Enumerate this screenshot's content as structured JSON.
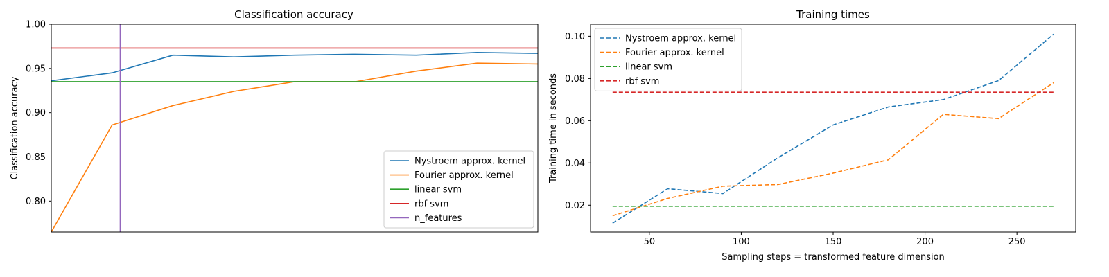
{
  "chart_data": [
    {
      "type": "line",
      "title": "Classification accuracy",
      "xlabel": "",
      "ylabel": "Classification accuracy",
      "xlim": [
        30,
        270
      ],
      "ylim": [
        0.765,
        1.0
      ],
      "xticks_visible": false,
      "yticks": [
        "0.80",
        "0.85",
        "0.90",
        "0.95",
        "1.00"
      ],
      "grid": false,
      "legend_position": "lower-right",
      "series": [
        {
          "name": "Nystroem approx. kernel",
          "color": "#1f77b4",
          "style": "solid",
          "x": [
            30,
            60,
            90,
            120,
            150,
            180,
            210,
            240,
            270
          ],
          "y": [
            0.936,
            0.945,
            0.965,
            0.963,
            0.965,
            0.966,
            0.965,
            0.968,
            0.967
          ]
        },
        {
          "name": "Fourier approx. kernel",
          "color": "#ff7f0e",
          "style": "solid",
          "x": [
            30,
            60,
            90,
            120,
            150,
            180,
            210,
            240,
            270
          ],
          "y": [
            0.765,
            0.886,
            0.908,
            0.924,
            0.935,
            0.935,
            0.947,
            0.956,
            0.955
          ]
        },
        {
          "name": "linear svm",
          "color": "#2ca02c",
          "style": "solid",
          "x": [
            30,
            270
          ],
          "y": [
            0.935,
            0.935
          ]
        },
        {
          "name": "rbf svm",
          "color": "#d62728",
          "style": "solid",
          "x": [
            30,
            270
          ],
          "y": [
            0.973,
            0.973
          ]
        },
        {
          "name": "n_features",
          "color": "#9467bd",
          "style": "vertical",
          "x": [
            64,
            64
          ],
          "y": [
            0.765,
            1.0
          ]
        }
      ]
    },
    {
      "type": "line",
      "title": "Training times",
      "xlabel": "Sampling steps = transformed feature dimension",
      "ylabel": "Training time in seconds",
      "xlim": [
        18,
        282
      ],
      "ylim": [
        0.0073,
        0.1057
      ],
      "xticks": [
        "50",
        "100",
        "150",
        "200",
        "250"
      ],
      "yticks": [
        "0.02",
        "0.04",
        "0.06",
        "0.08",
        "0.10"
      ],
      "grid": false,
      "legend_position": "upper-left",
      "series": [
        {
          "name": "Nystroem approx. kernel",
          "color": "#1f77b4",
          "style": "dashed",
          "x": [
            30,
            60,
            90,
            120,
            150,
            180,
            210,
            240,
            270
          ],
          "y": [
            0.0115,
            0.0278,
            0.0255,
            0.0425,
            0.058,
            0.0665,
            0.07,
            0.079,
            0.101
          ]
        },
        {
          "name": "Fourier approx. kernel",
          "color": "#ff7f0e",
          "style": "dashed",
          "x": [
            30,
            60,
            90,
            120,
            150,
            180,
            210,
            240,
            270
          ],
          "y": [
            0.015,
            0.0232,
            0.029,
            0.0298,
            0.0352,
            0.0415,
            0.063,
            0.061,
            0.078
          ]
        },
        {
          "name": "linear svm",
          "color": "#2ca02c",
          "style": "dashed",
          "x": [
            30,
            270
          ],
          "y": [
            0.0195,
            0.0195
          ]
        },
        {
          "name": "rbf svm",
          "color": "#d62728",
          "style": "dashed",
          "x": [
            30,
            270
          ],
          "y": [
            0.0735,
            0.0735
          ]
        }
      ]
    }
  ]
}
